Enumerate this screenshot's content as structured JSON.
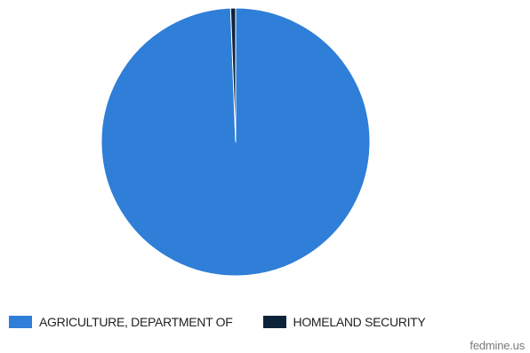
{
  "chart_data": {
    "type": "pie",
    "title": "",
    "slices": [
      {
        "label": "AGRICULTURE, DEPARTMENT OF",
        "value": 99.4,
        "color": "#2f7ed8"
      },
      {
        "label": "HOMELAND SECURITY",
        "value": 0.6,
        "color": "#0d233a"
      }
    ],
    "legend_position": "bottom"
  },
  "watermark": "fedmine.us"
}
